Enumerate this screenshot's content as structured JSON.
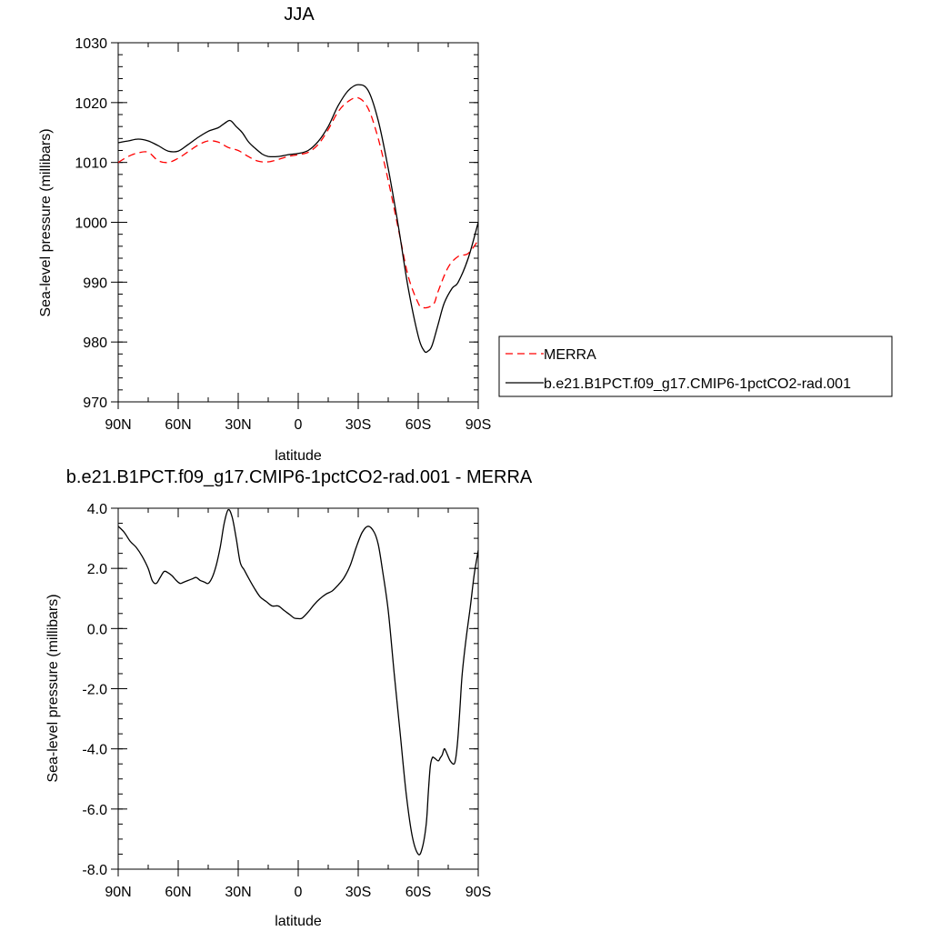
{
  "chart_data": [
    {
      "type": "line",
      "title": "JJA",
      "xlabel": "latitude",
      "ylabel": "Sea-level pressure (millibars)",
      "xlim": [
        90,
        -90
      ],
      "ylim": [
        970,
        1030
      ],
      "xticks": [
        90,
        60,
        30,
        0,
        -30,
        -60,
        -90
      ],
      "xtick_labels": [
        "90N",
        "60N",
        "30N",
        "0",
        "30S",
        "60S",
        "90S"
      ],
      "yticks": [
        970,
        980,
        990,
        1000,
        1010,
        1020,
        1030
      ],
      "ytick_labels": [
        "970",
        "980",
        "990",
        "1000",
        "1010",
        "1020",
        "1030"
      ],
      "legend_position": "right",
      "series": [
        {
          "name": "MERRA",
          "color": "#ff0000",
          "dash": "dashed",
          "x": [
            90,
            85,
            80,
            75,
            70,
            65,
            60,
            55,
            50,
            45,
            40,
            35,
            30,
            25,
            20,
            15,
            10,
            5,
            0,
            -5,
            -10,
            -15,
            -20,
            -25,
            -30,
            -35,
            -40,
            -45,
            -50,
            -55,
            -60,
            -62,
            -65,
            -68,
            -70,
            -75,
            -80,
            -85,
            -90
          ],
          "y": [
            1010,
            1011,
            1011.6,
            1011.7,
            1010.3,
            1010,
            1010.7,
            1011.8,
            1012.9,
            1013.6,
            1013.4,
            1012.5,
            1012,
            1011,
            1010.2,
            1010.1,
            1010.5,
            1011,
            1011.3,
            1011.7,
            1013,
            1015.5,
            1018.5,
            1020.2,
            1020.8,
            1019,
            1014,
            1007,
            999,
            991,
            986.5,
            985.8,
            985.8,
            986.5,
            988.5,
            992.5,
            994.3,
            994.8,
            997
          ]
        },
        {
          "name": "b.e21.B1PCT.f09_g17.CMIP6-1pctCO2-rad.001",
          "color": "#000000",
          "dash": "solid",
          "x": [
            90,
            85,
            80,
            75,
            70,
            65,
            60,
            55,
            50,
            45,
            40,
            37,
            34,
            31,
            28,
            25,
            22,
            18,
            15,
            10,
            5,
            0,
            -5,
            -10,
            -15,
            -20,
            -25,
            -30,
            -35,
            -40,
            -45,
            -50,
            -55,
            -60,
            -63,
            -65,
            -67,
            -70,
            -73,
            -77,
            -80,
            -85,
            -90
          ],
          "y": [
            1013.3,
            1013.6,
            1013.9,
            1013.6,
            1012.8,
            1011.9,
            1011.9,
            1013,
            1014.2,
            1015.2,
            1015.8,
            1016.5,
            1017,
            1016,
            1015,
            1013.5,
            1012.5,
            1011.4,
            1011,
            1011,
            1011.3,
            1011.5,
            1012,
            1013.5,
            1016,
            1019.5,
            1022,
            1023,
            1022,
            1017,
            1009,
            999.5,
            989,
            981,
            978.5,
            978.5,
            979.5,
            983,
            986.5,
            989,
            990,
            994,
            1000
          ]
        }
      ]
    },
    {
      "type": "line",
      "title": "b.e21.B1PCT.f09_g17.CMIP6-1pctCO2-rad.001 - MERRA",
      "xlabel": "latitude",
      "ylabel": "Sea-level pressure (millibars)",
      "xlim": [
        90,
        -90
      ],
      "ylim": [
        -8,
        4
      ],
      "xticks": [
        90,
        60,
        30,
        0,
        -30,
        -60,
        -90
      ],
      "xtick_labels": [
        "90N",
        "60N",
        "30N",
        "0",
        "30S",
        "60S",
        "90S"
      ],
      "yticks": [
        -8,
        -6,
        -4,
        -2,
        0,
        2,
        4
      ],
      "ytick_labels": [
        "-8.0",
        "-6.0",
        "-4.0",
        "-2.0",
        "0.0",
        "2.0",
        "4.0"
      ],
      "series": [
        {
          "color": "#000000",
          "dash": "solid",
          "x": [
            90,
            87,
            84,
            81,
            78,
            75,
            73,
            71,
            69,
            67,
            65,
            63,
            61,
            59,
            57,
            55,
            53,
            51,
            49,
            47,
            45,
            43,
            41,
            39,
            37,
            35,
            33,
            31,
            29,
            27,
            25,
            22,
            19,
            16,
            13,
            10,
            7,
            4,
            2,
            0,
            -2,
            -5,
            -8,
            -11,
            -14,
            -17,
            -20,
            -23,
            -26,
            -29,
            -32,
            -35,
            -38,
            -40,
            -42,
            -45,
            -48,
            -51,
            -54,
            -57,
            -60,
            -62,
            -64,
            -65,
            -66,
            -67,
            -68,
            -70,
            -71,
            -72,
            -73,
            -74,
            -76,
            -78,
            -79,
            -80,
            -81,
            -82,
            -84,
            -86,
            -88,
            -90
          ],
          "y": [
            3.4,
            3.2,
            2.9,
            2.7,
            2.4,
            2,
            1.6,
            1.5,
            1.7,
            1.9,
            1.85,
            1.75,
            1.6,
            1.5,
            1.55,
            1.6,
            1.65,
            1.7,
            1.6,
            1.55,
            1.5,
            1.7,
            2.1,
            2.7,
            3.5,
            3.95,
            3.7,
            3.0,
            2.2,
            1.95,
            1.7,
            1.35,
            1.05,
            0.9,
            0.75,
            0.75,
            0.6,
            0.45,
            0.35,
            0.33,
            0.35,
            0.55,
            0.8,
            1.0,
            1.15,
            1.25,
            1.45,
            1.7,
            2.1,
            2.7,
            3.2,
            3.4,
            3.2,
            2.8,
            2.0,
            0.6,
            -1.5,
            -3.5,
            -5.5,
            -6.9,
            -7.5,
            -7.3,
            -6.5,
            -5.5,
            -4.6,
            -4.3,
            -4.3,
            -4.4,
            -4.3,
            -4.2,
            -4.0,
            -4.1,
            -4.4,
            -4.5,
            -4.2,
            -3.5,
            -2.5,
            -1.5,
            -0.3,
            0.7,
            1.8,
            2.6
          ]
        }
      ]
    }
  ],
  "legend": {
    "items": [
      {
        "label": "MERRA",
        "color": "#ff0000",
        "dash": "dashed"
      },
      {
        "label": "b.e21.B1PCT.f09_g17.CMIP6-1pctCO2-rad.001",
        "color": "#000000",
        "dash": "solid"
      }
    ]
  }
}
